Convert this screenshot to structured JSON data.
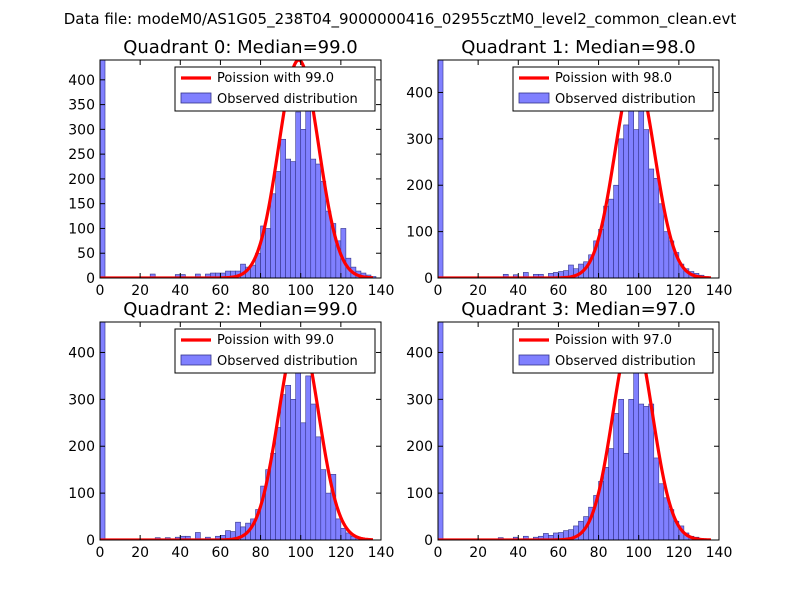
{
  "figure": {
    "suptitle": "Data file: modeM0/AS1G05_238T04_9000000416_02955cztM0_level2_common_clean.evt"
  },
  "colors": {
    "bar_fill": "#8080ff",
    "bar_edge": "#33338a",
    "curve": "#ff0000",
    "axis": "#000000",
    "legend_edge": "#000000",
    "background": "#ffffff"
  },
  "chart_data": [
    {
      "type": "bar",
      "title": "Quadrant 0: Median=99.0",
      "xlim": [
        0,
        140
      ],
      "ylim": [
        0,
        440
      ],
      "xticks": [
        0,
        20,
        40,
        60,
        80,
        100,
        120,
        140
      ],
      "yticks": [
        0,
        50,
        100,
        150,
        200,
        250,
        300,
        350,
        400
      ],
      "legend_position": "top-right",
      "bin_width": 2.5,
      "bins": [
        {
          "x": 0,
          "y": 440
        },
        {
          "x": 25,
          "y": 8
        },
        {
          "x": 37.5,
          "y": 7
        },
        {
          "x": 40,
          "y": 7
        },
        {
          "x": 47.5,
          "y": 8
        },
        {
          "x": 52.5,
          "y": 8
        },
        {
          "x": 55,
          "y": 10
        },
        {
          "x": 57.5,
          "y": 10
        },
        {
          "x": 60,
          "y": 10
        },
        {
          "x": 62.5,
          "y": 14
        },
        {
          "x": 65,
          "y": 14
        },
        {
          "x": 67.5,
          "y": 14
        },
        {
          "x": 70,
          "y": 28
        },
        {
          "x": 72.5,
          "y": 22
        },
        {
          "x": 75,
          "y": 26
        },
        {
          "x": 77.5,
          "y": 50
        },
        {
          "x": 80,
          "y": 105
        },
        {
          "x": 82.5,
          "y": 100
        },
        {
          "x": 85,
          "y": 170
        },
        {
          "x": 87.5,
          "y": 215
        },
        {
          "x": 90,
          "y": 280
        },
        {
          "x": 92.5,
          "y": 240
        },
        {
          "x": 95,
          "y": 235
        },
        {
          "x": 97.5,
          "y": 335
        },
        {
          "x": 100,
          "y": 300
        },
        {
          "x": 102.5,
          "y": 375
        },
        {
          "x": 105,
          "y": 240
        },
        {
          "x": 107.5,
          "y": 230
        },
        {
          "x": 110,
          "y": 195
        },
        {
          "x": 112.5,
          "y": 135
        },
        {
          "x": 115,
          "y": 110
        },
        {
          "x": 117.5,
          "y": 75
        },
        {
          "x": 120,
          "y": 100
        },
        {
          "x": 122.5,
          "y": 40
        },
        {
          "x": 125,
          "y": 22
        },
        {
          "x": 127.5,
          "y": 14
        },
        {
          "x": 130,
          "y": 10
        },
        {
          "x": 132.5,
          "y": 6
        },
        {
          "x": 135,
          "y": 3
        }
      ],
      "series": [
        {
          "name": "Poission with 99.0",
          "kind": "line",
          "mean": 99.0,
          "peak": 440
        },
        {
          "name": "Observed distribution",
          "kind": "bar"
        }
      ]
    },
    {
      "type": "bar",
      "title": "Quadrant 1: Median=98.0",
      "xlim": [
        0,
        140
      ],
      "ylim": [
        0,
        470
      ],
      "xticks": [
        0,
        20,
        40,
        60,
        80,
        100,
        120,
        140
      ],
      "yticks": [
        0,
        100,
        200,
        300,
        400
      ],
      "legend_position": "top-right",
      "bin_width": 2.5,
      "bins": [
        {
          "x": 0,
          "y": 470
        },
        {
          "x": 32.5,
          "y": 8
        },
        {
          "x": 37.5,
          "y": 7
        },
        {
          "x": 42.5,
          "y": 12
        },
        {
          "x": 47.5,
          "y": 8
        },
        {
          "x": 50,
          "y": 8
        },
        {
          "x": 55,
          "y": 10
        },
        {
          "x": 57.5,
          "y": 12
        },
        {
          "x": 60,
          "y": 14
        },
        {
          "x": 62.5,
          "y": 16
        },
        {
          "x": 65,
          "y": 28
        },
        {
          "x": 67.5,
          "y": 20
        },
        {
          "x": 70,
          "y": 30
        },
        {
          "x": 72.5,
          "y": 35
        },
        {
          "x": 75,
          "y": 50
        },
        {
          "x": 77.5,
          "y": 80
        },
        {
          "x": 80,
          "y": 105
        },
        {
          "x": 82.5,
          "y": 155
        },
        {
          "x": 85,
          "y": 170
        },
        {
          "x": 87.5,
          "y": 200
        },
        {
          "x": 90,
          "y": 300
        },
        {
          "x": 92.5,
          "y": 330
        },
        {
          "x": 95,
          "y": 390
        },
        {
          "x": 97.5,
          "y": 320
        },
        {
          "x": 100,
          "y": 395
        },
        {
          "x": 102.5,
          "y": 320
        },
        {
          "x": 105,
          "y": 235
        },
        {
          "x": 107.5,
          "y": 215
        },
        {
          "x": 110,
          "y": 160
        },
        {
          "x": 112.5,
          "y": 100
        },
        {
          "x": 115,
          "y": 80
        },
        {
          "x": 117.5,
          "y": 55
        },
        {
          "x": 120,
          "y": 30
        },
        {
          "x": 122.5,
          "y": 20
        },
        {
          "x": 125,
          "y": 14
        },
        {
          "x": 127.5,
          "y": 10
        },
        {
          "x": 130,
          "y": 6
        },
        {
          "x": 132.5,
          "y": 3
        }
      ],
      "series": [
        {
          "name": "Poission with 98.0",
          "kind": "line",
          "mean": 98.0,
          "peak": 445
        },
        {
          "name": "Observed distribution",
          "kind": "bar"
        }
      ]
    },
    {
      "type": "bar",
      "title": "Quadrant 2: Median=99.0",
      "xlim": [
        0,
        140
      ],
      "ylim": [
        0,
        465
      ],
      "xticks": [
        0,
        20,
        40,
        60,
        80,
        100,
        120,
        140
      ],
      "yticks": [
        0,
        100,
        200,
        300,
        400
      ],
      "legend_position": "top-right",
      "bin_width": 2.5,
      "bins": [
        {
          "x": 0,
          "y": 465
        },
        {
          "x": 27.5,
          "y": 5
        },
        {
          "x": 32.5,
          "y": 5
        },
        {
          "x": 37.5,
          "y": 6
        },
        {
          "x": 40,
          "y": 8
        },
        {
          "x": 42.5,
          "y": 8
        },
        {
          "x": 47.5,
          "y": 16
        },
        {
          "x": 52.5,
          "y": 6
        },
        {
          "x": 57.5,
          "y": 8
        },
        {
          "x": 60,
          "y": 10
        },
        {
          "x": 62.5,
          "y": 20
        },
        {
          "x": 65,
          "y": 18
        },
        {
          "x": 67.5,
          "y": 38
        },
        {
          "x": 70,
          "y": 28
        },
        {
          "x": 72.5,
          "y": 36
        },
        {
          "x": 75,
          "y": 45
        },
        {
          "x": 77.5,
          "y": 65
        },
        {
          "x": 80,
          "y": 115
        },
        {
          "x": 82.5,
          "y": 150
        },
        {
          "x": 85,
          "y": 185
        },
        {
          "x": 87.5,
          "y": 240
        },
        {
          "x": 90,
          "y": 310
        },
        {
          "x": 92.5,
          "y": 330
        },
        {
          "x": 95,
          "y": 300
        },
        {
          "x": 97.5,
          "y": 430
        },
        {
          "x": 100,
          "y": 250
        },
        {
          "x": 102.5,
          "y": 350
        },
        {
          "x": 105,
          "y": 290
        },
        {
          "x": 107.5,
          "y": 220
        },
        {
          "x": 110,
          "y": 150
        },
        {
          "x": 112.5,
          "y": 100
        },
        {
          "x": 115,
          "y": 140
        },
        {
          "x": 117.5,
          "y": 45
        },
        {
          "x": 120,
          "y": 25
        },
        {
          "x": 122.5,
          "y": 15
        },
        {
          "x": 125,
          "y": 8
        },
        {
          "x": 127.5,
          "y": 5
        },
        {
          "x": 130,
          "y": 3
        }
      ],
      "series": [
        {
          "name": "Poission with 99.0",
          "kind": "line",
          "mean": 99.0,
          "peak": 445
        },
        {
          "name": "Observed distribution",
          "kind": "bar"
        }
      ]
    },
    {
      "type": "bar",
      "title": "Quadrant 3: Median=97.0",
      "xlim": [
        0,
        140
      ],
      "ylim": [
        0,
        465
      ],
      "xticks": [
        0,
        20,
        40,
        60,
        80,
        100,
        120,
        140
      ],
      "yticks": [
        0,
        100,
        200,
        300,
        400
      ],
      "legend_position": "top-right",
      "bin_width": 2.5,
      "bins": [
        {
          "x": 0,
          "y": 465
        },
        {
          "x": 30,
          "y": 5
        },
        {
          "x": 37.5,
          "y": 6
        },
        {
          "x": 42.5,
          "y": 8
        },
        {
          "x": 47.5,
          "y": 6
        },
        {
          "x": 50,
          "y": 8
        },
        {
          "x": 52.5,
          "y": 14
        },
        {
          "x": 55,
          "y": 10
        },
        {
          "x": 57.5,
          "y": 15
        },
        {
          "x": 60,
          "y": 16
        },
        {
          "x": 62.5,
          "y": 20
        },
        {
          "x": 65,
          "y": 22
        },
        {
          "x": 67.5,
          "y": 30
        },
        {
          "x": 70,
          "y": 40
        },
        {
          "x": 72.5,
          "y": 50
        },
        {
          "x": 75,
          "y": 70
        },
        {
          "x": 77.5,
          "y": 95
        },
        {
          "x": 80,
          "y": 125
        },
        {
          "x": 82.5,
          "y": 155
        },
        {
          "x": 85,
          "y": 195
        },
        {
          "x": 87.5,
          "y": 270
        },
        {
          "x": 90,
          "y": 300
        },
        {
          "x": 92.5,
          "y": 185
        },
        {
          "x": 95,
          "y": 300
        },
        {
          "x": 97.5,
          "y": 380
        },
        {
          "x": 100,
          "y": 290
        },
        {
          "x": 102.5,
          "y": 285
        },
        {
          "x": 105,
          "y": 290
        },
        {
          "x": 107.5,
          "y": 175
        },
        {
          "x": 110,
          "y": 120
        },
        {
          "x": 112.5,
          "y": 90
        },
        {
          "x": 115,
          "y": 65
        },
        {
          "x": 117.5,
          "y": 40
        },
        {
          "x": 120,
          "y": 30
        },
        {
          "x": 122.5,
          "y": 15
        },
        {
          "x": 125,
          "y": 8
        },
        {
          "x": 127.5,
          "y": 6
        },
        {
          "x": 130,
          "y": 3
        }
      ],
      "series": [
        {
          "name": "Poission with 97.0",
          "kind": "line",
          "mean": 97.0,
          "peak": 445
        },
        {
          "name": "Observed distribution",
          "kind": "bar"
        }
      ]
    }
  ]
}
